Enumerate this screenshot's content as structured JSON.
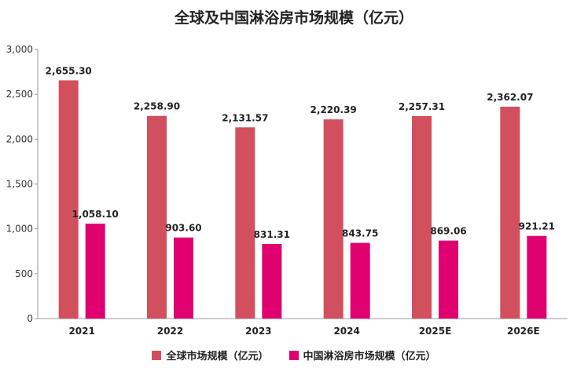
{
  "chart_data": {
    "type": "bar",
    "title": "全球及中国淋浴房市场规模（亿元）",
    "categories": [
      "2021",
      "2022",
      "2023",
      "2024",
      "2025E",
      "2026E"
    ],
    "series": [
      {
        "name": "全球市场规模（亿元）",
        "color": "#d24f5e",
        "values": [
          2655.3,
          2258.9,
          2131.57,
          2220.39,
          2257.31,
          2362.07
        ],
        "labels": [
          "2,655.30",
          "2,258.90",
          "2,131.57",
          "2,220.39",
          "2,257.31",
          "2,362.07"
        ]
      },
      {
        "name": "中国淋浴房市场规模（亿元）",
        "color": "#e0006f",
        "values": [
          1058.1,
          903.6,
          831.31,
          843.75,
          869.06,
          921.21
        ],
        "labels": [
          "1,058.10",
          "903.60",
          "831.31",
          "843.75",
          "869.06",
          "921.21"
        ]
      }
    ],
    "ylim": [
      0,
      3000
    ],
    "yticks": [
      0,
      500,
      1000,
      1500,
      2000,
      2500,
      3000
    ],
    "ytick_labels": [
      "0",
      "500",
      "1,000",
      "1,500",
      "2,000",
      "2,500",
      "3,000"
    ],
    "legend": "bottom",
    "grid": false
  }
}
